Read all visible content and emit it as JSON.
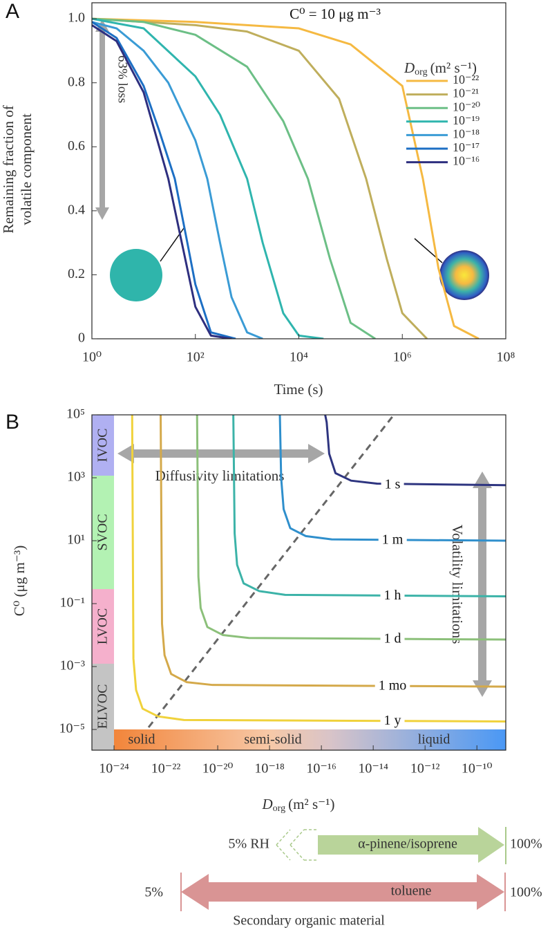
{
  "chart_data": [
    {
      "type": "line",
      "panel_label": "A",
      "annotation": "C⁰ = 10 μg m⁻³",
      "arrow_label": "63% loss",
      "y_label": [
        "Remaining fraction of",
        "volatile component"
      ],
      "x_label": "Time (s)",
      "legend_title": {
        "symbol": "D",
        "subscript": "org",
        "unit": "(m² s⁻¹)"
      },
      "xscale": "log",
      "xlim": [
        1,
        100000000
      ],
      "xticks": [
        {
          "value": 1,
          "label": "10⁰"
        },
        {
          "value": 100,
          "label": "10²"
        },
        {
          "value": 10000,
          "label": "10⁴"
        },
        {
          "value": 1000000,
          "label": "10⁶"
        },
        {
          "value": 100000000,
          "label": "10⁸"
        }
      ],
      "ylim": [
        0,
        1.05
      ],
      "yticks": [
        0,
        0.2,
        0.4,
        0.6,
        0.8,
        {
          "value": 1,
          "label": "1.0"
        }
      ],
      "series": [
        {
          "name": "10⁻²²",
          "color": "#f5b942",
          "x": [
            1,
            100,
            10000,
            100000,
            1000000,
            2500000,
            5000000,
            10000000,
            30000000
          ],
          "values": [
            1.0,
            0.99,
            0.97,
            0.92,
            0.79,
            0.5,
            0.22,
            0.04,
            0
          ]
        },
        {
          "name": "10⁻²¹",
          "color": "#bfae5c",
          "x": [
            1,
            100,
            1000,
            10000,
            60000,
            200000,
            500000,
            1000000,
            3000000
          ],
          "values": [
            1.0,
            0.98,
            0.96,
            0.9,
            0.75,
            0.5,
            0.25,
            0.08,
            0
          ]
        },
        {
          "name": "10⁻²⁰",
          "color": "#6cbf86",
          "x": [
            1,
            10,
            100,
            1000,
            5000,
            15000,
            40000,
            100000,
            300000
          ],
          "values": [
            1.0,
            0.99,
            0.95,
            0.85,
            0.68,
            0.5,
            0.25,
            0.05,
            0
          ]
        },
        {
          "name": "10⁻¹⁹",
          "color": "#2fb5ae",
          "x": [
            1,
            10,
            100,
            300,
            1000,
            2000,
            5000,
            10000,
            30000
          ],
          "values": [
            1.0,
            0.97,
            0.82,
            0.7,
            0.5,
            0.3,
            0.08,
            0.01,
            0
          ]
        },
        {
          "name": "10⁻¹⁸",
          "color": "#3a9bd5",
          "x": [
            1,
            3,
            10,
            30,
            100,
            170,
            300,
            500,
            1000,
            2000
          ],
          "values": [
            0.99,
            0.97,
            0.9,
            0.8,
            0.62,
            0.5,
            0.3,
            0.13,
            0.02,
            0
          ]
        },
        {
          "name": "10⁻¹⁷",
          "color": "#1d6fc4",
          "x": [
            1,
            3,
            10,
            20,
            40,
            70,
            100,
            200,
            600
          ],
          "values": [
            0.99,
            0.94,
            0.79,
            0.65,
            0.5,
            0.3,
            0.17,
            0.02,
            0
          ]
        },
        {
          "name": "10⁻¹⁶",
          "color": "#2e2f7f",
          "x": [
            1,
            3,
            10,
            20,
            30,
            50,
            100,
            200,
            500
          ],
          "values": [
            0.98,
            0.93,
            0.77,
            0.6,
            0.5,
            0.33,
            0.1,
            0.01,
            0
          ]
        }
      ]
    },
    {
      "type": "line",
      "panel_label": "B",
      "xscale": "log",
      "yscale": "log",
      "x_label": {
        "symbol": "D",
        "subscript": "org",
        "unit": "(m² s⁻¹)"
      },
      "y_label": "C⁰ (μg m⁻³)",
      "xlim": [
        1.4e-25,
        1.3e-09
      ],
      "xticks": [
        {
          "value": 1e-24,
          "label": "10⁻²⁴"
        },
        {
          "value": 1e-22,
          "label": "10⁻²²"
        },
        {
          "value": 1e-20,
          "label": "10⁻²⁰"
        },
        {
          "value": 1e-18,
          "label": "10⁻¹⁸"
        },
        {
          "value": 1e-16,
          "label": "10⁻¹⁶"
        },
        {
          "value": 1e-14,
          "label": "10⁻¹⁴"
        },
        {
          "value": 1e-12,
          "label": "10⁻¹²"
        },
        {
          "value": 1e-10,
          "label": "10⁻¹⁰"
        }
      ],
      "ylim": [
        2.2e-06,
        100000
      ],
      "yticks": [
        {
          "value": 100000,
          "label": "10⁵"
        },
        {
          "value": 1000,
          "label": "10³"
        },
        {
          "value": 10,
          "label": "10¹"
        },
        {
          "value": 0.1,
          "label": "10⁻¹"
        },
        {
          "value": 0.001,
          "label": "10⁻³"
        },
        {
          "value": 1e-05,
          "label": "10⁻⁵"
        }
      ],
      "series": [
        {
          "name": "1 y",
          "color": "#f0d23c",
          "x": [
            5e-24,
            5.6e-24,
            7.1e-24,
            1.26e-23,
            5e-23,
            5e-22,
            1.3e-09
          ],
          "values": [
            100000,
            0.0018,
            0.00018,
            4.6e-05,
            2.6e-05,
            2e-05,
            1.8e-05
          ]
        },
        {
          "name": "1 mo",
          "color": "#d4a94a",
          "x": [
            6.3e-23,
            7.1e-23,
            8.9e-23,
            1.6e-22,
            6.3e-22,
            6.3e-21,
            1.3e-09
          ],
          "values": [
            100000,
            0.023,
            0.0023,
            0.00058,
            0.00032,
            0.00026,
            0.00023
          ]
        },
        {
          "name": "1 d",
          "color": "#8cc07a",
          "x": [
            1.6e-21,
            1.8e-21,
            2.2e-21,
            4e-21,
            1.6e-20,
            1.6e-19,
            1.3e-09
          ],
          "values": [
            100000,
            0.72,
            0.072,
            0.018,
            0.01,
            0.0081,
            0.0072
          ]
        },
        {
          "name": "1 h",
          "color": "#3cb3a8",
          "x": [
            4e-20,
            4.5e-20,
            5.6e-20,
            1e-19,
            4e-19,
            4e-18,
            1.3e-09
          ],
          "values": [
            100000,
            17,
            1.7,
            0.44,
            0.25,
            0.19,
            0.17
          ]
        },
        {
          "name": "1 m",
          "color": "#2f8fcc",
          "x": [
            2.5e-18,
            2.8e-18,
            3.5e-18,
            6.3e-18,
            2.5e-17,
            2.5e-16,
            1.3e-09
          ],
          "values": [
            100000,
            1000,
            100,
            25,
            14,
            11,
            10
          ]
        },
        {
          "name": "1 s",
          "color": "#2e3580",
          "x": [
            1.4e-16,
            1.6e-16,
            2e-16,
            3.5e-16,
            1.4e-15,
            1.4e-14,
            1.3e-09
          ],
          "values": [
            100000,
            58000,
            5800,
            1400,
            810,
            650,
            580
          ]
        }
      ],
      "volatility_classes": [
        "IVOC",
        "SVOC",
        "LVOC",
        "ELVOC"
      ],
      "phase_states": [
        "solid",
        "semi-solid",
        "liquid"
      ],
      "annotations": [
        "Diffusivity limitations",
        "Volatility limitations"
      ]
    }
  ],
  "rh_ranges": {
    "title": "Secondary organic material",
    "rows": [
      {
        "name": "α-pinene/isoprene",
        "start": "5% RH",
        "end": "100%"
      },
      {
        "name": "toluene",
        "start": "5%",
        "end": "100%"
      }
    ]
  }
}
